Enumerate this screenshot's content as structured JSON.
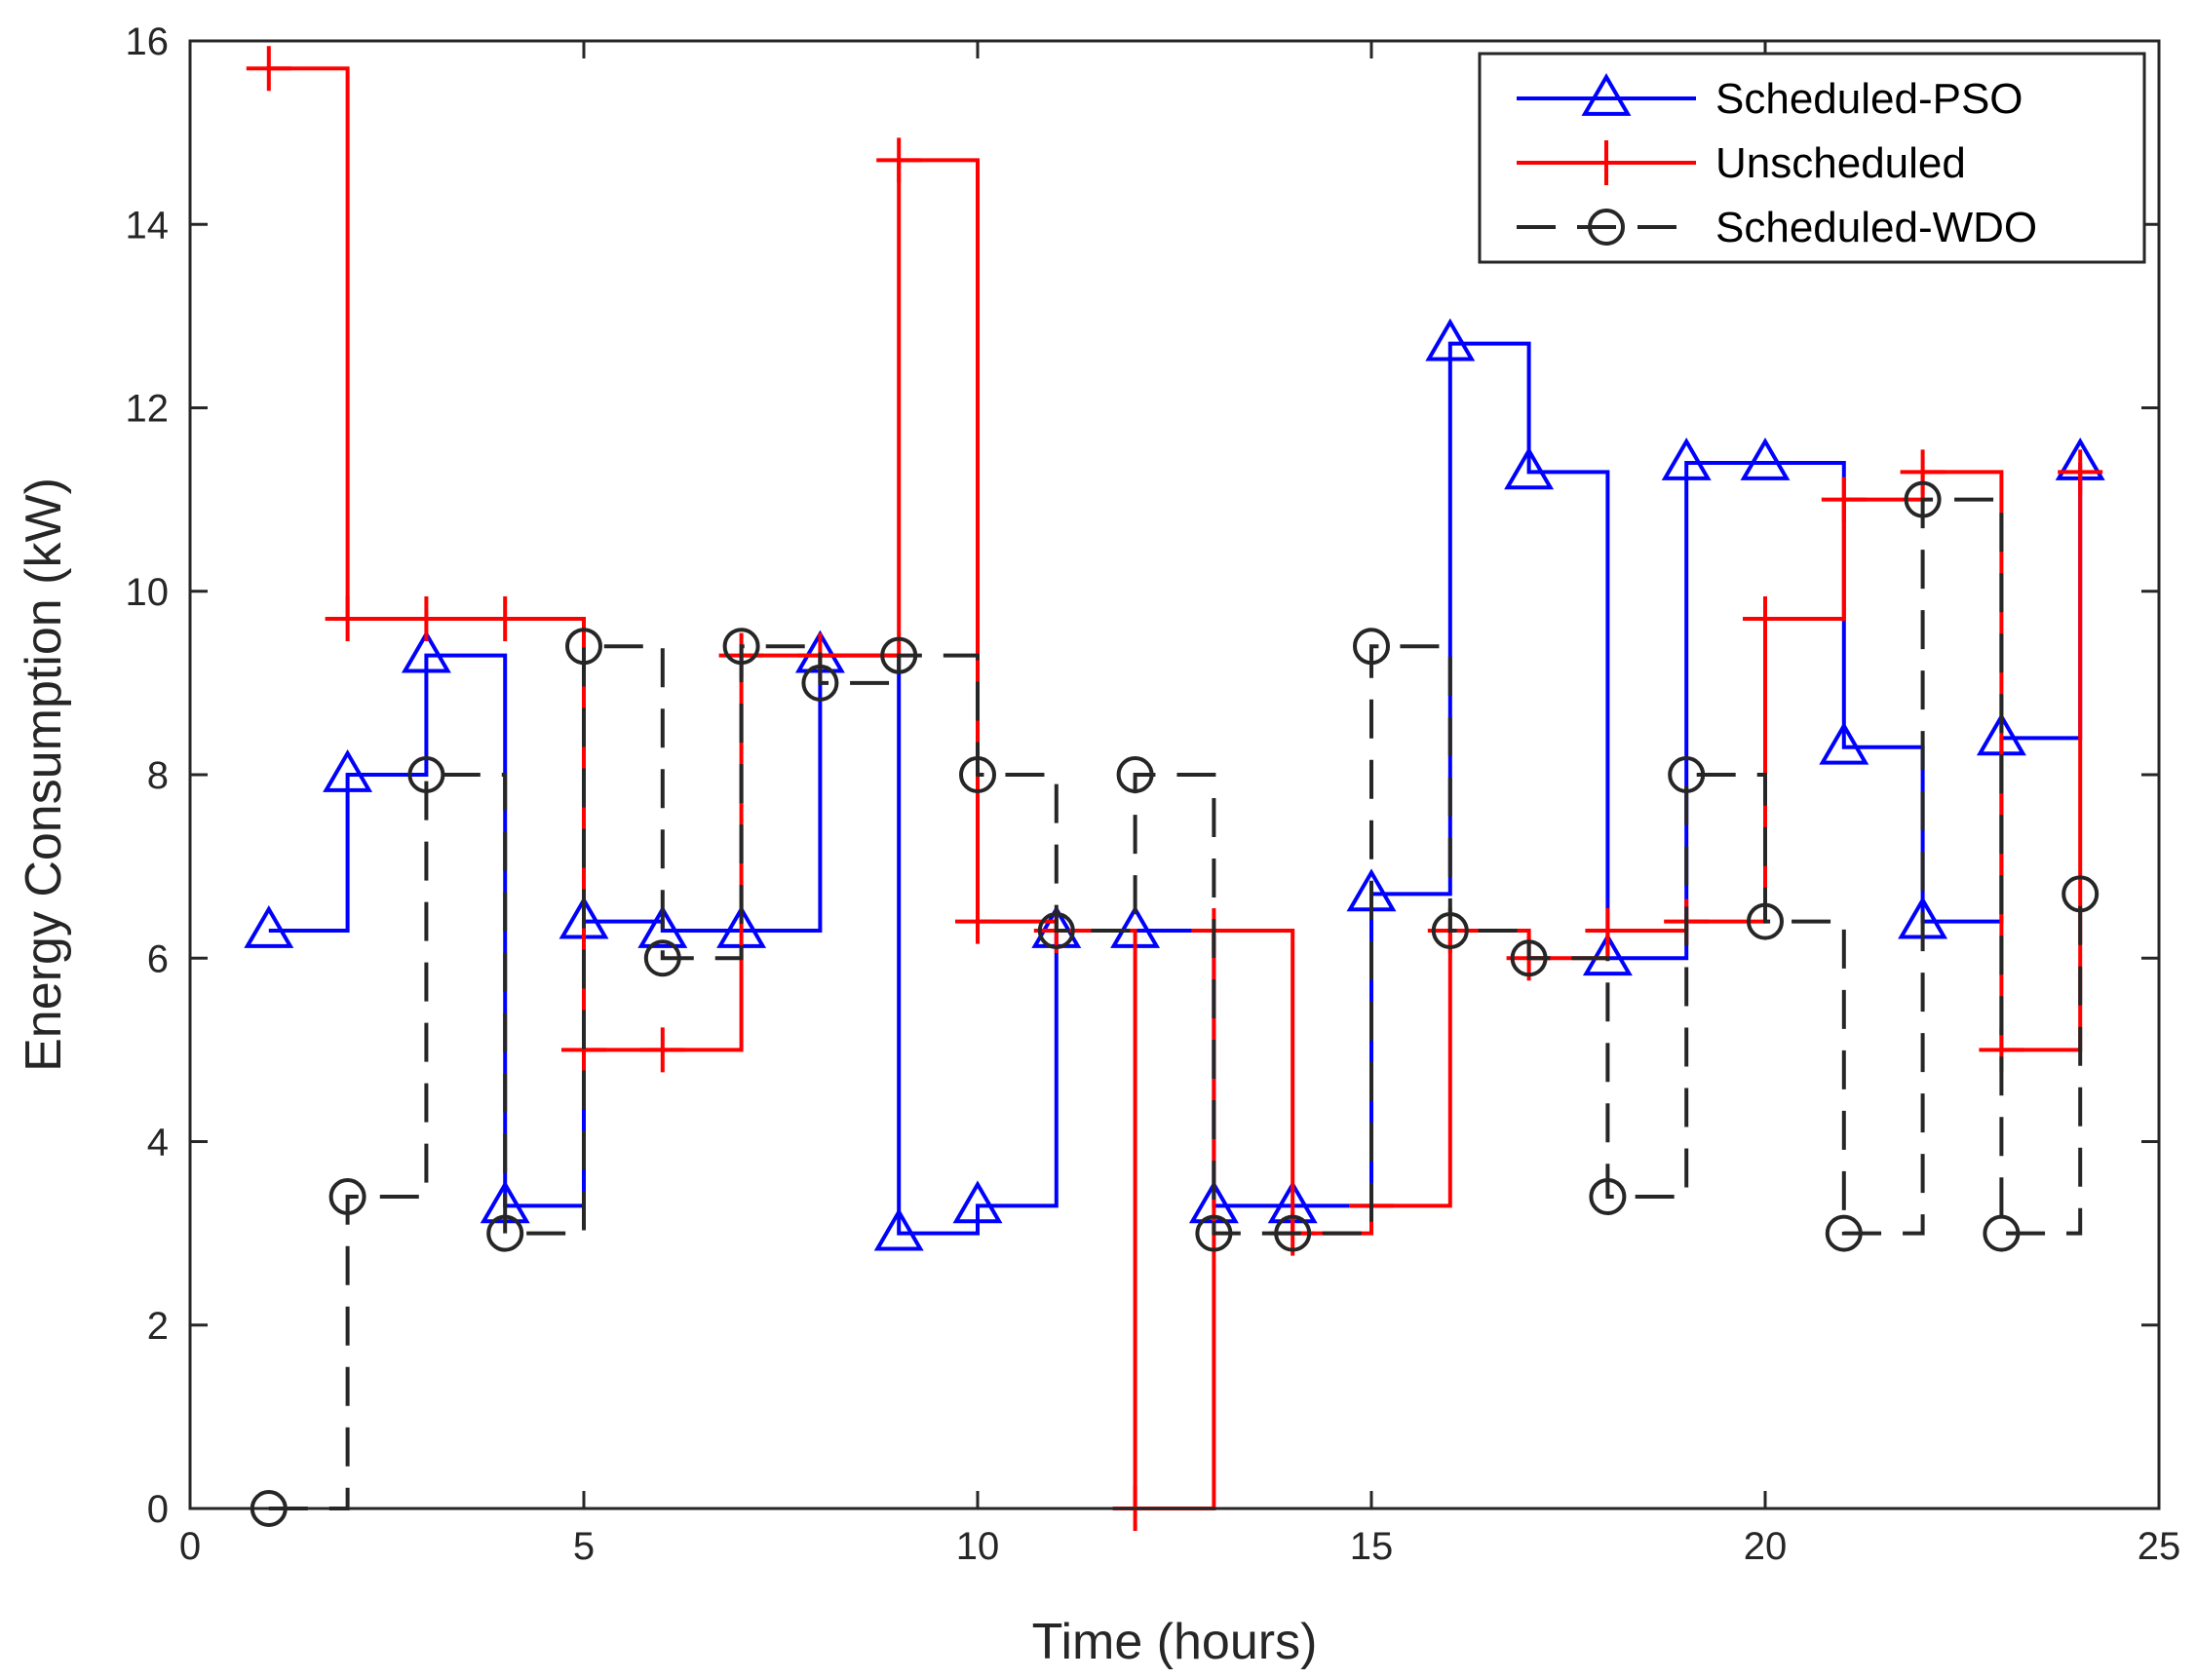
{
  "chart_data": {
    "type": "line",
    "step": "post",
    "title": "",
    "xlabel": "Time (hours)",
    "ylabel": "Energy Consumption (kW)",
    "xlim": [
      0,
      25
    ],
    "ylim": [
      0,
      16
    ],
    "xticks": [
      0,
      5,
      10,
      15,
      20,
      25
    ],
    "yticks": [
      0,
      2,
      4,
      6,
      8,
      10,
      12,
      14,
      16
    ],
    "grid": false,
    "legend_position": "top-right",
    "x": [
      1,
      2,
      3,
      4,
      5,
      6,
      7,
      8,
      9,
      10,
      11,
      12,
      13,
      14,
      15,
      16,
      17,
      18,
      19,
      20,
      21,
      22,
      23,
      24
    ],
    "series": [
      {
        "name": "Scheduled-PSO",
        "color": "#0000ff",
        "marker": "triangle",
        "dash": "solid",
        "values": [
          6.3,
          8.0,
          9.3,
          3.3,
          6.4,
          6.3,
          6.3,
          9.3,
          3.0,
          3.3,
          6.3,
          6.3,
          3.3,
          3.3,
          6.7,
          12.7,
          11.3,
          6.0,
          11.4,
          11.4,
          8.3,
          6.4,
          8.4,
          11.4
        ]
      },
      {
        "name": "Unscheduled",
        "color": "#ff0000",
        "marker": "plus",
        "dash": "solid",
        "values": [
          15.7,
          9.7,
          9.7,
          9.7,
          5.0,
          5.0,
          9.3,
          9.3,
          14.7,
          6.4,
          6.3,
          0.0,
          6.3,
          3.0,
          3.3,
          6.3,
          6.0,
          6.3,
          6.4,
          9.7,
          11.0,
          11.3,
          5.0,
          11.3
        ]
      },
      {
        "name": "Scheduled-WDO",
        "color": "#262626",
        "marker": "circle",
        "dash": "dashed",
        "values": [
          0.0,
          3.4,
          8.0,
          3.0,
          9.4,
          6.0,
          9.4,
          9.0,
          9.3,
          8.0,
          6.3,
          8.0,
          3.0,
          3.0,
          9.4,
          6.3,
          6.0,
          3.4,
          8.0,
          6.4,
          3.0,
          11.0,
          3.0,
          6.7
        ]
      }
    ]
  }
}
